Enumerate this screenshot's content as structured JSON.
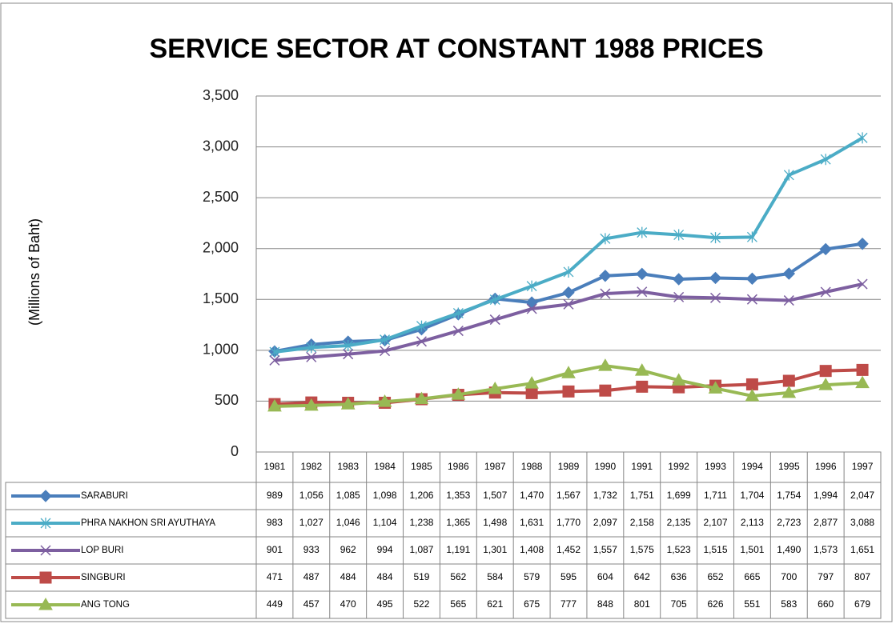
{
  "chart_data": {
    "type": "line",
    "title": "SERVICE SECTOR AT CONSTANT 1988 PRICES",
    "y_label": "(Millions of Baht)",
    "categories": [
      "1981",
      "1982",
      "1983",
      "1984",
      "1985",
      "1986",
      "1987",
      "1988",
      "1989",
      "1990",
      "1991",
      "1992",
      "1993",
      "1994",
      "1995",
      "1996",
      "1997"
    ],
    "ylim": [
      0,
      3500
    ],
    "yticks": [
      0,
      500,
      {
        "value": 1000,
        "label": "1,000"
      },
      {
        "value": 1500,
        "label": "1,500"
      },
      {
        "value": 2000,
        "label": "2,000"
      },
      {
        "value": 2500,
        "label": "2,500"
      },
      {
        "value": 3000,
        "label": "3,000"
      },
      {
        "value": 3500,
        "label": "3,500"
      }
    ],
    "grid": true,
    "series": [
      {
        "name": "SARABURI",
        "color": "#4a7ebb",
        "marker": "diamond",
        "values": [
          989,
          1056,
          1085,
          1098,
          1206,
          1353,
          1507,
          1470,
          1567,
          1732,
          1751,
          1699,
          1711,
          1704,
          1754,
          1994,
          2047
        ],
        "value_labels": [
          "989",
          "1,056",
          "1,085",
          "1,098",
          "1,206",
          "1,353",
          "1,507",
          "1,470",
          "1,567",
          "1,732",
          "1,751",
          "1,699",
          "1,711",
          "1,704",
          "1,754",
          "1,994",
          "2,047"
        ]
      },
      {
        "name": "PHRA NAKHON SRI AYUTHAYA",
        "color": "#4bacc6",
        "marker": "star",
        "values": [
          983,
          1027,
          1046,
          1104,
          1238,
          1365,
          1498,
          1631,
          1770,
          2097,
          2158,
          2135,
          2107,
          2113,
          2723,
          2877,
          3088
        ],
        "value_labels": [
          "983",
          "1,027",
          "1,046",
          "1,104",
          "1,238",
          "1,365",
          "1,498",
          "1,631",
          "1,770",
          "2,097",
          "2,158",
          "2,135",
          "2,107",
          "2,113",
          "2,723",
          "2,877",
          "3,088"
        ]
      },
      {
        "name": "LOP BURI",
        "color": "#7d5fa0",
        "marker": "x",
        "values": [
          901,
          933,
          962,
          994,
          1087,
          1191,
          1301,
          1408,
          1452,
          1557,
          1575,
          1523,
          1515,
          1501,
          1490,
          1573,
          1651
        ],
        "value_labels": [
          "901",
          "933",
          "962",
          "994",
          "1,087",
          "1,191",
          "1,301",
          "1,408",
          "1,452",
          "1,557",
          "1,575",
          "1,523",
          "1,515",
          "1,501",
          "1,490",
          "1,573",
          "1,651"
        ]
      },
      {
        "name": "SINGBURI",
        "color": "#be4b48",
        "marker": "square",
        "values": [
          471,
          487,
          484,
          484,
          519,
          562,
          584,
          579,
          595,
          604,
          642,
          636,
          652,
          665,
          700,
          797,
          807
        ],
        "value_labels": [
          "471",
          "487",
          "484",
          "484",
          "519",
          "562",
          "584",
          "579",
          "595",
          "604",
          "642",
          "636",
          "652",
          "665",
          "700",
          "797",
          "807"
        ]
      },
      {
        "name": "ANG TONG",
        "color": "#98b954",
        "marker": "triangle",
        "values": [
          449,
          457,
          470,
          495,
          522,
          565,
          621,
          675,
          777,
          848,
          801,
          705,
          626,
          551,
          583,
          660,
          679
        ],
        "value_labels": [
          "449",
          "457",
          "470",
          "495",
          "522",
          "565",
          "621",
          "675",
          "777",
          "848",
          "801",
          "705",
          "626",
          "551",
          "583",
          "660",
          "679"
        ]
      }
    ]
  }
}
